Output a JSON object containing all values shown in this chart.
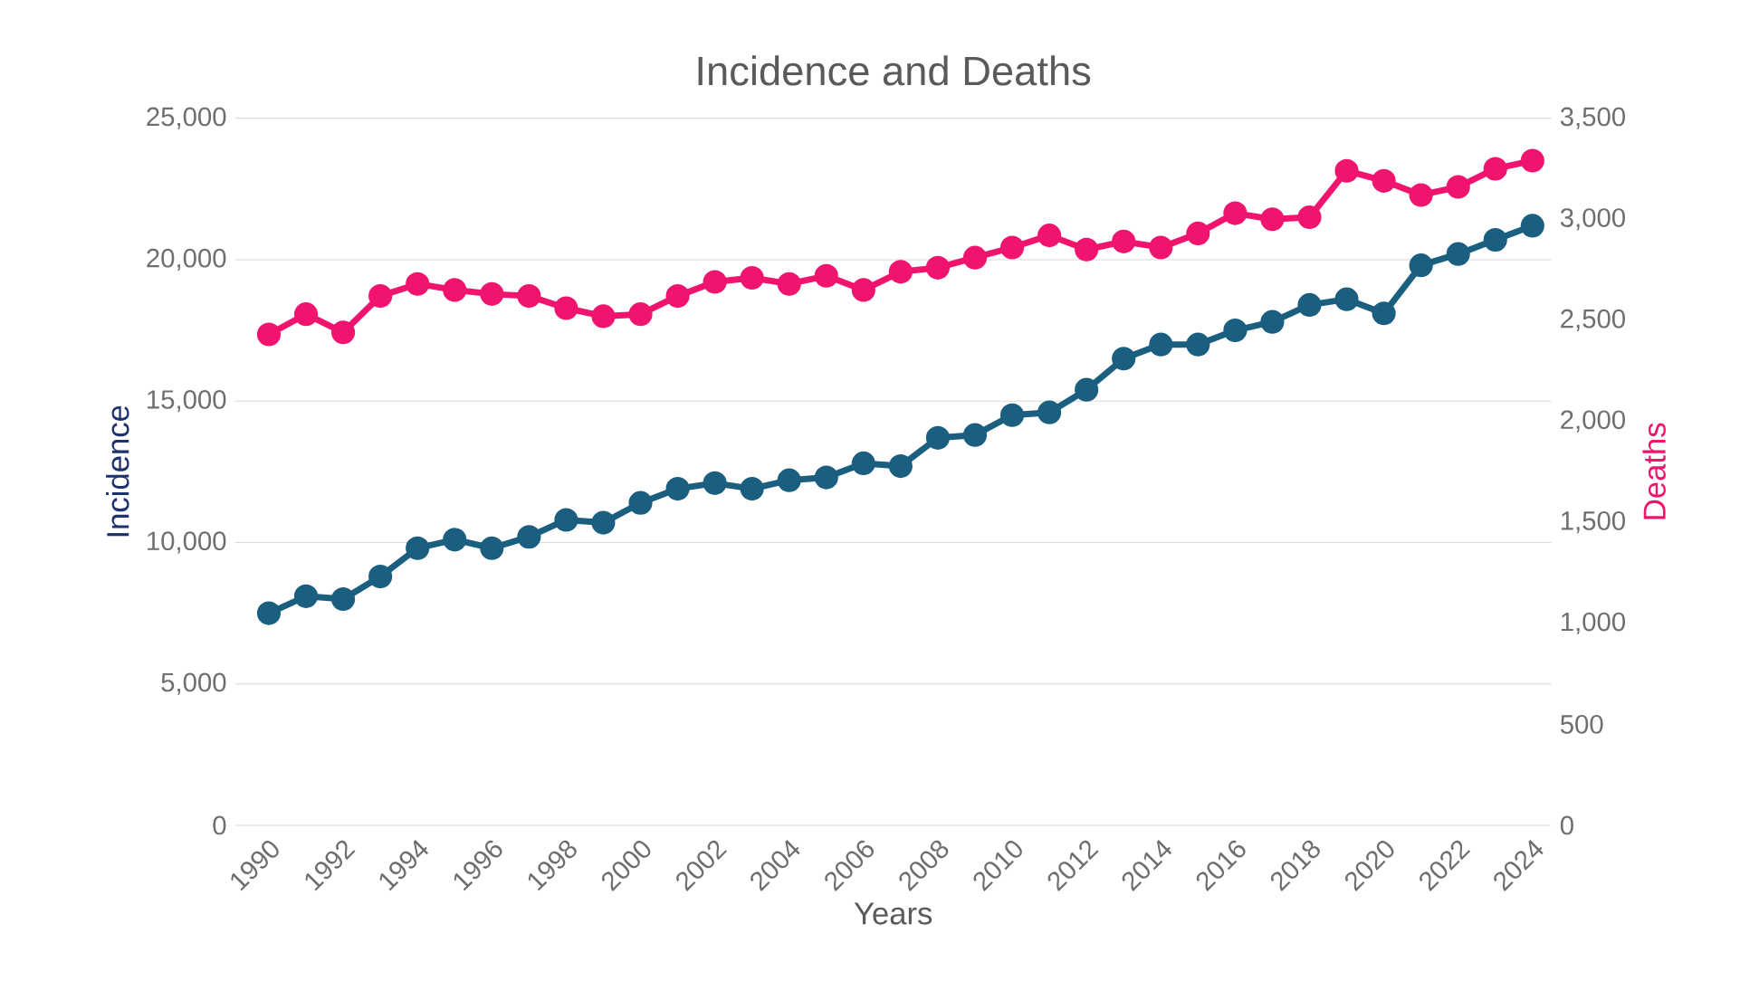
{
  "chart_data": {
    "type": "line",
    "title": "Incidence and Deaths",
    "xlabel": "Years",
    "ylabel": "Incidence",
    "y2label": "Deaths",
    "x": [
      1990,
      1991,
      1992,
      1993,
      1994,
      1995,
      1996,
      1997,
      1998,
      1999,
      2000,
      2001,
      2002,
      2003,
      2004,
      2005,
      2006,
      2007,
      2008,
      2009,
      2010,
      2011,
      2012,
      2013,
      2014,
      2015,
      2016,
      2017,
      2018,
      2019,
      2020,
      2021,
      2022,
      2023,
      2024
    ],
    "series": [
      {
        "name": null,
        "color": "#1a5e80",
        "values": [
          7500,
          8100,
          8000,
          8800,
          9800,
          10100,
          9800,
          10200,
          10800,
          10700,
          11400,
          11900,
          12100,
          11900,
          12200,
          12300,
          12800,
          12700,
          13700,
          13800,
          14500,
          14600,
          15400,
          16500,
          17000,
          17000,
          17500,
          17800,
          18400,
          18600,
          18100,
          19800,
          20200,
          20700,
          21200
        ]
      },
      {
        "name": null,
        "color": "#f0146e",
        "axis": "y2",
        "values": [
          2430,
          2530,
          2440,
          2620,
          2680,
          2650,
          2630,
          2620,
          2560,
          2520,
          2530,
          2620,
          2690,
          2710,
          2680,
          2720,
          2650,
          2740,
          2760,
          2810,
          2860,
          2920,
          2850,
          2890,
          2860,
          2930,
          3030,
          3000,
          3010,
          3240,
          3190,
          3120,
          3160,
          3250,
          3290
        ]
      }
    ],
    "xlim": [
      1989.1,
      2024.5
    ],
    "xticks": [
      1990,
      1992,
      1994,
      1996,
      1998,
      2000,
      2002,
      2004,
      2006,
      2008,
      2010,
      2012,
      2014,
      2016,
      2018,
      2020,
      2022,
      2024
    ],
    "ylim": [
      0,
      25000
    ],
    "yticks": [
      0,
      {
        "value": 5000,
        "label": "5,000"
      },
      {
        "value": 10000,
        "label": "10,000"
      },
      {
        "value": 15000,
        "label": "15,000"
      },
      {
        "value": 20000,
        "label": "20,000"
      },
      {
        "value": 25000,
        "label": "25,000"
      }
    ],
    "y2lim": [
      0,
      3500
    ],
    "y2ticks": [
      0,
      500,
      {
        "value": 1000,
        "label": "1,000"
      },
      {
        "value": 1500,
        "label": "1,500"
      },
      {
        "value": 2000,
        "label": "2,000"
      },
      {
        "value": 2500,
        "label": "2,500"
      },
      {
        "value": 3000,
        "label": "3,000"
      },
      {
        "value": 3500,
        "label": "3,500"
      }
    ],
    "grid": "y",
    "marker": "circle",
    "line_style": "solid"
  }
}
